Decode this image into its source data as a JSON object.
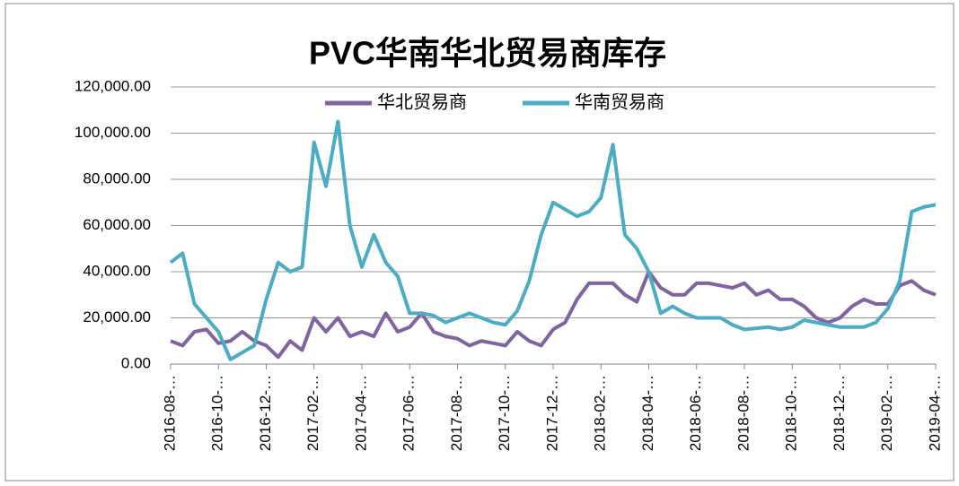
{
  "chart_data": {
    "type": "line",
    "title": "PVC华南华北贸易商库存",
    "categories": [
      "2016-08-…",
      null,
      null,
      null,
      "2016-10-…",
      null,
      null,
      null,
      "2016-12-…",
      null,
      null,
      null,
      "2017-02-…",
      null,
      null,
      null,
      "2017-04-…",
      null,
      null,
      null,
      "2017-06-…",
      null,
      null,
      null,
      "2017-08-…",
      null,
      null,
      null,
      "2017-10-…",
      null,
      null,
      null,
      "2017-12-…",
      null,
      null,
      null,
      "2018-02-…",
      null,
      null,
      null,
      "2018-04-…",
      null,
      null,
      null,
      "2018-06-…",
      null,
      null,
      null,
      "2018-08-…",
      null,
      null,
      null,
      "2018-10-…",
      null,
      null,
      null,
      "2018-12-…",
      null,
      null,
      null,
      "2019-02-…",
      null,
      null,
      null,
      "2019-04-…"
    ],
    "series": [
      {
        "name": "华北贸易商",
        "color": "#8064a2",
        "values": [
          10000,
          8000,
          14000,
          15000,
          9000,
          10000,
          14000,
          10000,
          8000,
          3000,
          10000,
          6000,
          20000,
          14000,
          20000,
          12000,
          14000,
          12000,
          22000,
          14000,
          16000,
          22000,
          14000,
          12000,
          11000,
          8000,
          10000,
          9000,
          8000,
          14000,
          10000,
          8000,
          15000,
          18000,
          28000,
          35000,
          35000,
          35000,
          30000,
          27000,
          40000,
          33000,
          30000,
          30000,
          35000,
          35000,
          34000,
          33000,
          35000,
          30000,
          32000,
          28000,
          28000,
          25000,
          20000,
          18000,
          20000,
          25000,
          28000,
          26000,
          26000,
          34000,
          36000,
          32000,
          30000
        ]
      },
      {
        "name": "华南贸易商",
        "color": "#4bacc6",
        "values": [
          44000,
          48000,
          26000,
          20000,
          14000,
          2000,
          5000,
          8000,
          28000,
          44000,
          40000,
          42000,
          96000,
          77000,
          105000,
          60000,
          42000,
          56000,
          44000,
          38000,
          22000,
          22000,
          21000,
          18000,
          20000,
          22000,
          20000,
          18000,
          17000,
          23000,
          36000,
          56000,
          70000,
          67000,
          64000,
          66000,
          72000,
          95000,
          56000,
          50000,
          40000,
          22000,
          25000,
          22000,
          20000,
          20000,
          20000,
          17000,
          15000,
          15500,
          16000,
          15000,
          16000,
          19000,
          18000,
          17000,
          16000,
          16000,
          16000,
          18000,
          24000,
          36000,
          66000,
          68000,
          69000
        ]
      }
    ],
    "ylim": [
      0,
      120000
    ],
    "yticks": [
      {
        "value": 0,
        "label": "0.00"
      },
      {
        "value": 20000,
        "label": "20,000.00"
      },
      {
        "value": 40000,
        "label": "40,000.00"
      },
      {
        "value": 60000,
        "label": "60,000.00"
      },
      {
        "value": 80000,
        "label": "80,000.00"
      },
      {
        "value": 100000,
        "label": "100,000.00"
      },
      {
        "value": 120000,
        "label": "120,000.00"
      }
    ],
    "grid": true
  }
}
